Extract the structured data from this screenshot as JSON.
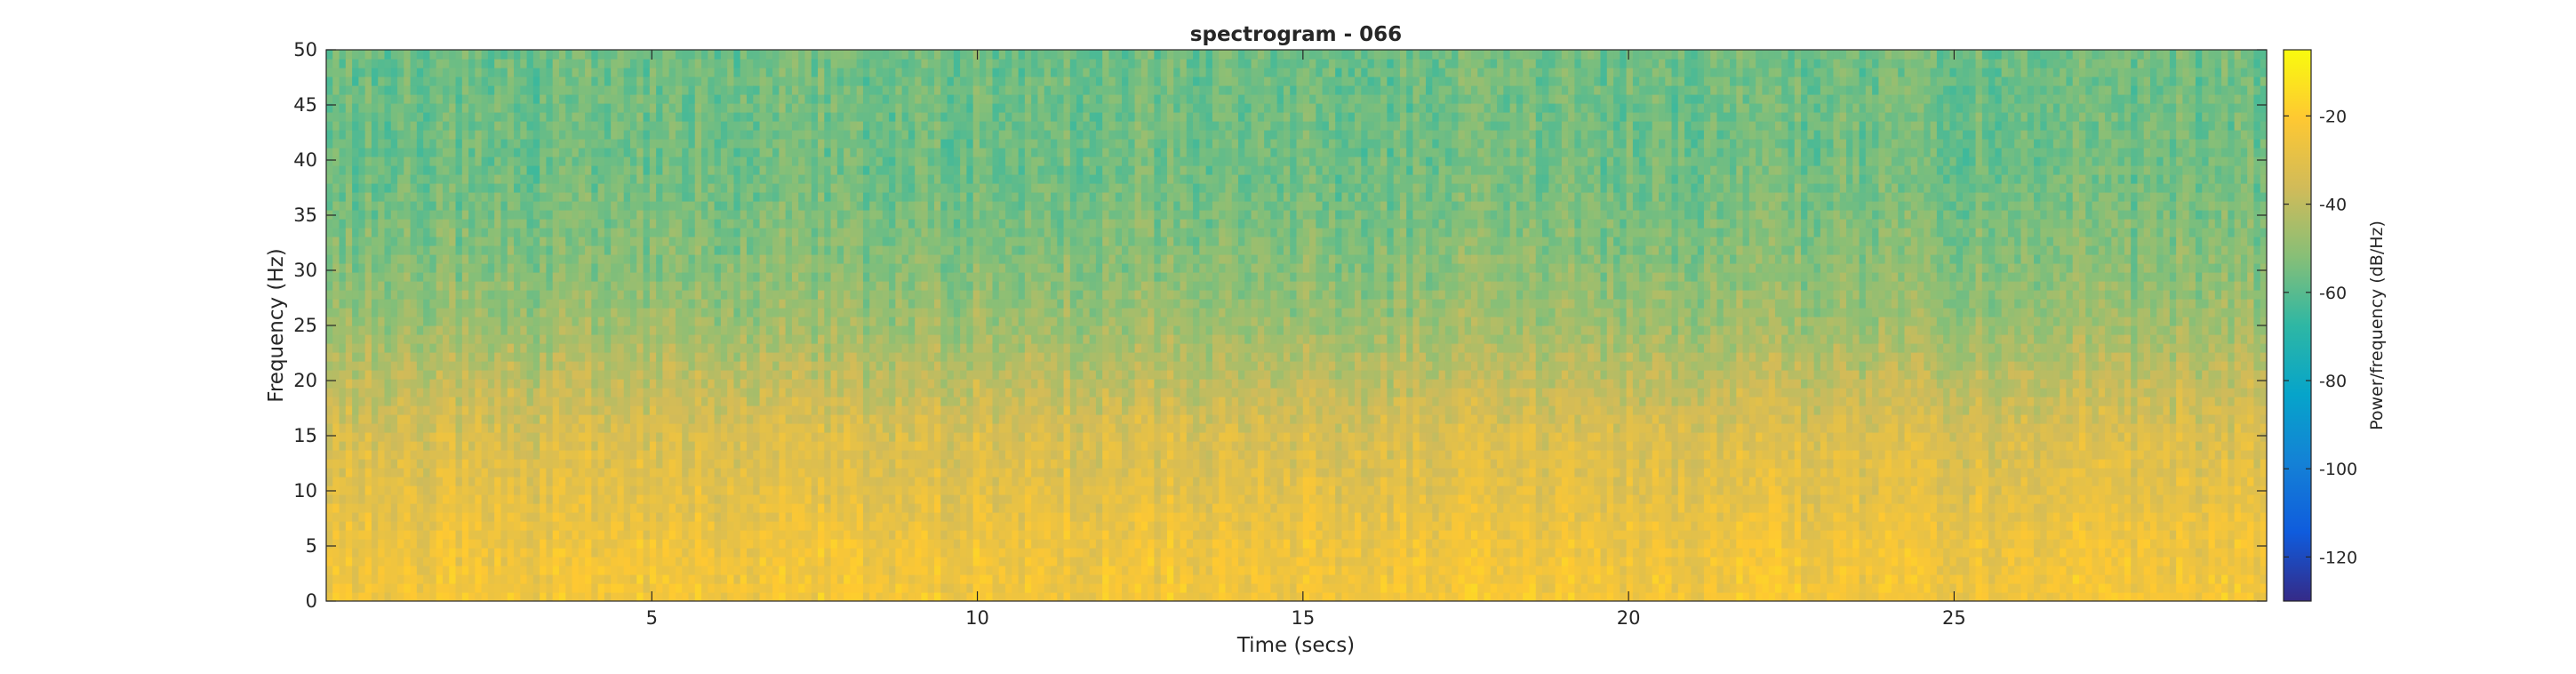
{
  "chart_data": {
    "type": "heatmap",
    "title": "spectrogram - 066",
    "xlabel": "Time (secs)",
    "ylabel": "Frequency (Hz)",
    "xlim": [
      0,
      29.8
    ],
    "ylim": [
      0,
      50
    ],
    "x_ticks": [
      5,
      10,
      15,
      20,
      25
    ],
    "y_ticks": [
      0,
      5,
      10,
      15,
      20,
      25,
      30,
      35,
      40,
      45,
      50
    ],
    "colorbar": {
      "label": "Power/frequency (dB/Hz)",
      "ticks": [
        -20,
        -40,
        -60,
        -80,
        -100,
        -120
      ],
      "range": [
        -130,
        -5
      ],
      "colormap": "parula"
    },
    "power_profile_db": {
      "frequency_hz": [
        0,
        5,
        10,
        15,
        20,
        25,
        30,
        35,
        40,
        45,
        50
      ],
      "mean_power_db": [
        -24,
        -26,
        -30,
        -33,
        -40,
        -47,
        -51,
        -54,
        -56,
        -56,
        -56
      ]
    },
    "grid": false
  }
}
